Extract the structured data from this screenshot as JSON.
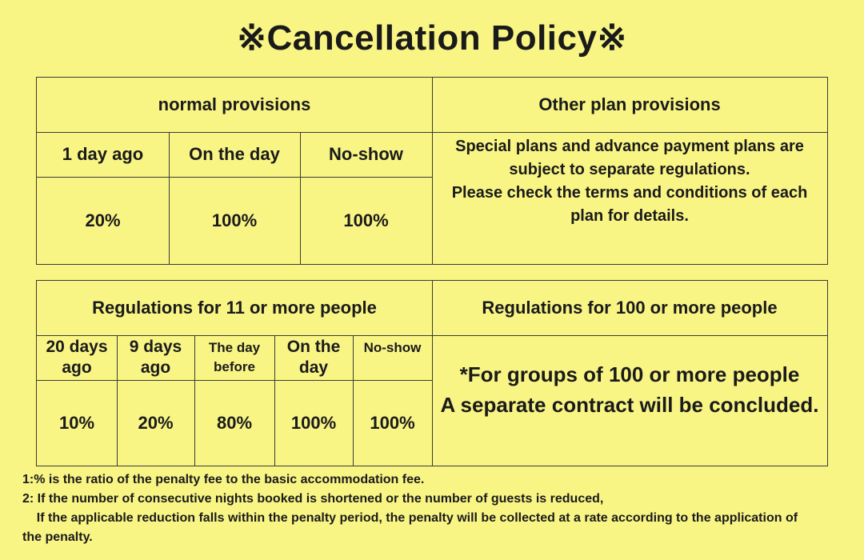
{
  "title": "※Cancellation Policy※",
  "table1": {
    "normal_header": "normal provisions",
    "other_header": "Other plan provisions",
    "columns": [
      {
        "label": "1 day ago",
        "value": "20%"
      },
      {
        "label": "On the day",
        "value": "100%"
      },
      {
        "label": "No-show",
        "value": "100%"
      }
    ],
    "other_text": [
      "Special plans and advance payment plans are",
      "subject to separate regulations.",
      "Please check the terms and conditions of each",
      "plan for details."
    ]
  },
  "table2": {
    "group11_header": "Regulations for 11 or more people",
    "group100_header": "Regulations for 100 or more people",
    "columns": [
      {
        "label_lines": [
          "20 days",
          "ago"
        ],
        "value": "10%"
      },
      {
        "label_lines": [
          "9 days",
          "ago"
        ],
        "value": "20%"
      },
      {
        "label_lines": [
          "The day",
          "before"
        ],
        "value": "80%"
      },
      {
        "label_lines": [
          "On the",
          "day"
        ],
        "value": "100%"
      },
      {
        "label_lines": [
          "No-show",
          ""
        ],
        "value": "100%"
      }
    ],
    "group100_text": [
      "*For groups of 100 or more people",
      "A separate contract will be concluded."
    ]
  },
  "notes": [
    "1:% is the ratio of the penalty fee to the basic accommodation fee.",
    "2: If the number of consecutive nights booked is shortened or the number of guests is reduced,",
    "    If the applicable reduction falls within the penalty period, the penalty will be collected at a rate according to the application of",
    "the penalty."
  ]
}
